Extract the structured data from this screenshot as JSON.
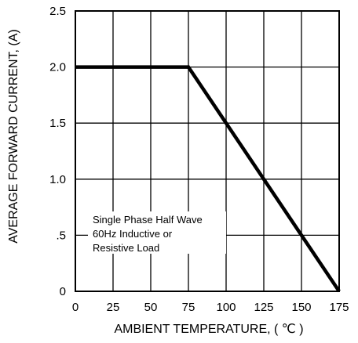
{
  "chart_data": {
    "type": "line",
    "title": "",
    "xlabel": "AMBIENT TEMPERATURE, ( ℃ )",
    "ylabel": "AVERAGE FORWARD CURRENT, (A)",
    "xlim": [
      0,
      175
    ],
    "ylim": [
      0,
      2.5
    ],
    "grid": true,
    "x_ticks": [
      0,
      25,
      50,
      75,
      100,
      125,
      150,
      175
    ],
    "x_tick_labels": [
      "0",
      "25",
      "50",
      "75",
      "100",
      "125",
      "150",
      "175"
    ],
    "y_ticks": [
      0,
      0.5,
      1.0,
      1.5,
      2.0,
      2.5
    ],
    "y_tick_labels": [
      "0",
      ".5",
      "1.0",
      "1.5",
      "2.0",
      "2.5"
    ],
    "series": [
      {
        "x": [
          0,
          75,
          175
        ],
        "y": [
          2.0,
          2.0,
          0
        ],
        "color": "#000000"
      }
    ],
    "annotation": [
      "Single Phase Half Wave",
      "60Hz Inductive or",
      "Resistive Load"
    ]
  }
}
